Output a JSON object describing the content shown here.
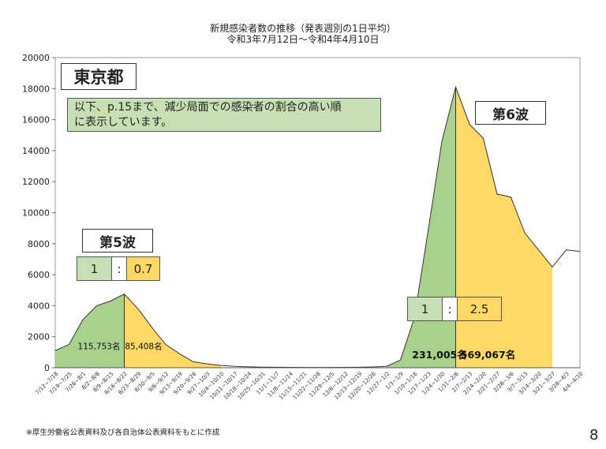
{
  "title": {
    "line1": "新規感染者数の推移（発表週別の1日平均）",
    "line2": "令和3年7月12日～令和4年4月10日"
  },
  "prefecture_label": "東京都",
  "note": {
    "line1": "以下、p.15まで、減少局面での感染者の割合の高い順",
    "line2": "に表示しています。"
  },
  "waves": {
    "wave5": {
      "label": "第5波",
      "ratio_left": "1",
      "ratio_sep": ":",
      "ratio_right": "0.7",
      "increase_count": "115,753名",
      "decrease_count": "85,408名"
    },
    "wave6": {
      "label": "第6波",
      "ratio_left": "1",
      "ratio_sep": ":",
      "ratio_right": "2.5",
      "increase_count": "231,005名",
      "decrease_count": "569,067名"
    }
  },
  "footnote": "※厚生労働省公表資料及び各自治体公表資料をもとに作成",
  "page_number": "8",
  "colors": {
    "increase": "#a9d18e",
    "decrease": "#ffd966",
    "outline": "#333333"
  },
  "chart_data": {
    "type": "area",
    "ylim": [
      0,
      20000
    ],
    "yticks": [
      0,
      2000,
      4000,
      6000,
      8000,
      10000,
      12000,
      14000,
      16000,
      18000,
      20000
    ],
    "categories": [
      "7/12~7/18",
      "7/19~7/25",
      "7/26~8/1",
      "8/2~8/8",
      "8/9~8/15",
      "8/16~8/22",
      "8/23~8/29",
      "8/30~9/5",
      "9/6~9/12",
      "9/13~9/19",
      "9/20~9/26",
      "9/27~10/3",
      "10/4~10/10",
      "10/11~10/17",
      "10/18~10/24",
      "10/25~10/31",
      "11/1~11/7",
      "11/8~11/14",
      "11/15~11/21",
      "11/22~11/28",
      "11/29~12/5",
      "12/6~12/12",
      "12/13~12/19",
      "12/20~12/26",
      "12/27~1/2",
      "1/3~1/9",
      "1/10~1/16",
      "1/17~1/23",
      "1/24~1/30",
      "1/31~2/6",
      "2/7~2/13",
      "2/14~2/20",
      "2/21~2/27",
      "2/28~3/6",
      "3/7~3/13",
      "3/14~3/20",
      "3/21~3/27",
      "3/28~4/3",
      "4/4~4/10"
    ],
    "values": [
      1100,
      1500,
      3100,
      4000,
      4300,
      4750,
      3800,
      2600,
      1500,
      900,
      380,
      250,
      150,
      90,
      60,
      40,
      30,
      25,
      20,
      20,
      20,
      25,
      30,
      50,
      90,
      500,
      3200,
      8800,
      14600,
      18100,
      15700,
      14800,
      11200,
      11000,
      8700,
      7600,
      6500,
      7600,
      7500
    ],
    "segments": {
      "wave5_increase": [
        0,
        5
      ],
      "wave5_decrease": [
        5,
        12
      ],
      "wave6_increase": [
        24,
        29
      ],
      "wave6_decrease": [
        29,
        36
      ]
    }
  }
}
